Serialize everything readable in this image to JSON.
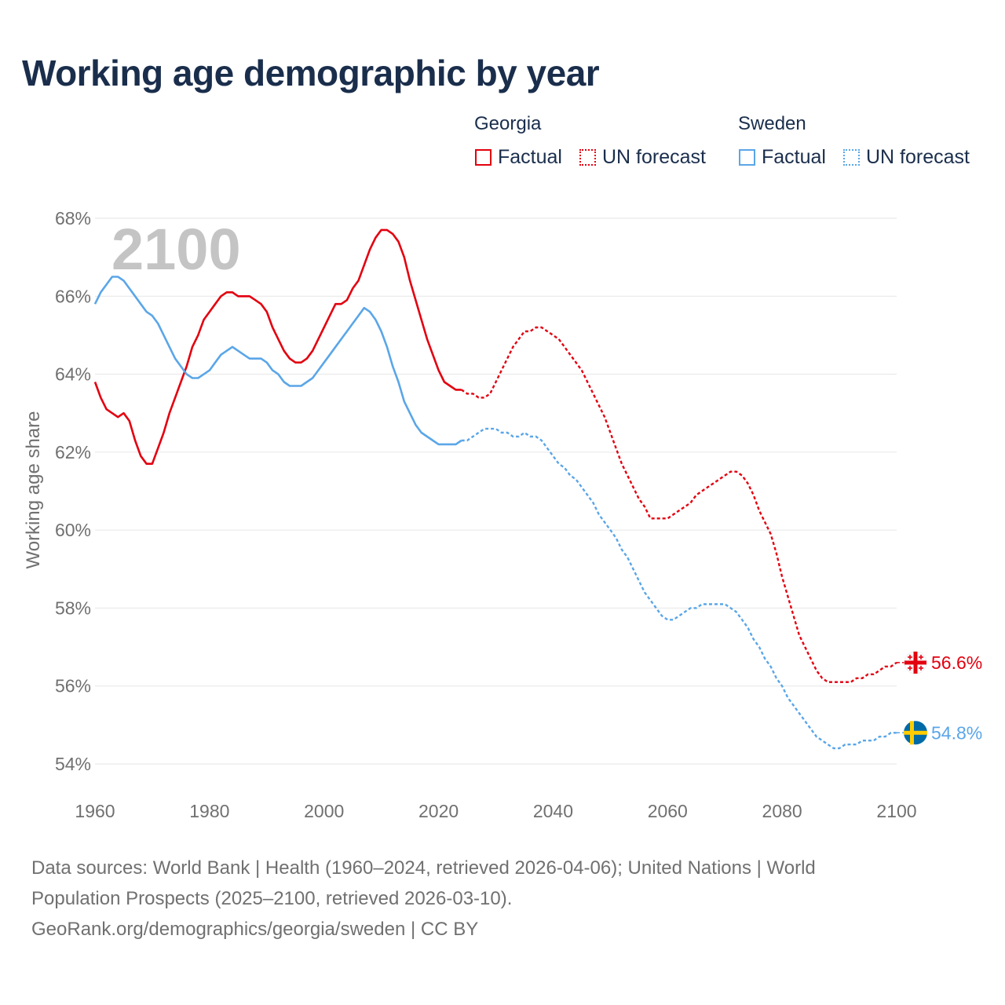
{
  "chart_data": {
    "type": "line",
    "title": "Working age demographic by year",
    "ylabel": "Working age share",
    "xlabel": "",
    "xlim": [
      1960,
      2100
    ],
    "ylim": [
      54,
      68
    ],
    "x_ticks": [
      "1960",
      "1980",
      "2000",
      "2020",
      "2040",
      "2060",
      "2080",
      "2100"
    ],
    "y_ticks": [
      "54%",
      "56%",
      "58%",
      "60%",
      "62%",
      "64%",
      "66%",
      "68%"
    ],
    "year_watermark": "2100",
    "legend": {
      "groups": [
        {
          "name": "Georgia",
          "items": [
            "Factual",
            "UN forecast"
          ]
        },
        {
          "name": "Sweden",
          "items": [
            "Factual",
            "UN forecast"
          ]
        }
      ]
    },
    "colors": {
      "Georgia": "#e3000f",
      "Sweden": "#5aa6e8"
    },
    "series": [
      {
        "name": "Georgia",
        "factual": {
          "x": [
            1960,
            1961,
            1962,
            1963,
            1964,
            1965,
            1966,
            1967,
            1968,
            1969,
            1970,
            1971,
            1972,
            1973,
            1974,
            1975,
            1976,
            1977,
            1978,
            1979,
            1980,
            1981,
            1982,
            1983,
            1984,
            1985,
            1986,
            1987,
            1988,
            1989,
            1990,
            1991,
            1992,
            1993,
            1994,
            1995,
            1996,
            1997,
            1998,
            1999,
            2000,
            2001,
            2002,
            2003,
            2004,
            2005,
            2006,
            2007,
            2008,
            2009,
            2010,
            2011,
            2012,
            2013,
            2014,
            2015,
            2016,
            2017,
            2018,
            2019,
            2020,
            2021,
            2022,
            2023,
            2024
          ],
          "y": [
            63.8,
            63.4,
            63.1,
            63.0,
            62.9,
            63.0,
            62.8,
            62.3,
            61.9,
            61.7,
            61.7,
            62.1,
            62.5,
            63.0,
            63.4,
            63.8,
            64.2,
            64.7,
            65.0,
            65.4,
            65.6,
            65.8,
            66.0,
            66.1,
            66.1,
            66.0,
            66.0,
            66.0,
            65.9,
            65.8,
            65.6,
            65.2,
            64.9,
            64.6,
            64.4,
            64.3,
            64.3,
            64.4,
            64.6,
            64.9,
            65.2,
            65.5,
            65.8,
            65.8,
            65.9,
            66.2,
            66.4,
            66.8,
            67.2,
            67.5,
            67.7,
            67.7,
            67.6,
            67.4,
            67.0,
            66.4,
            65.9,
            65.4,
            64.9,
            64.5,
            64.1,
            63.8,
            63.7,
            63.6,
            63.6
          ]
        },
        "forecast": {
          "x": [
            2024,
            2025,
            2026,
            2027,
            2028,
            2029,
            2030,
            2031,
            2032,
            2033,
            2034,
            2035,
            2036,
            2037,
            2038,
            2039,
            2040,
            2041,
            2042,
            2043,
            2044,
            2045,
            2046,
            2047,
            2048,
            2049,
            2050,
            2051,
            2052,
            2053,
            2054,
            2055,
            2056,
            2057,
            2058,
            2059,
            2060,
            2061,
            2062,
            2063,
            2064,
            2065,
            2066,
            2067,
            2068,
            2069,
            2070,
            2071,
            2072,
            2073,
            2074,
            2075,
            2076,
            2077,
            2078,
            2079,
            2080,
            2081,
            2082,
            2083,
            2084,
            2085,
            2086,
            2087,
            2088,
            2089,
            2090,
            2091,
            2092,
            2093,
            2094,
            2095,
            2096,
            2097,
            2098,
            2099,
            2100
          ],
          "y": [
            63.6,
            63.5,
            63.5,
            63.4,
            63.4,
            63.5,
            63.8,
            64.1,
            64.4,
            64.7,
            64.9,
            65.1,
            65.1,
            65.2,
            65.2,
            65.1,
            65.0,
            64.9,
            64.7,
            64.5,
            64.3,
            64.1,
            63.8,
            63.5,
            63.2,
            62.9,
            62.5,
            62.1,
            61.7,
            61.4,
            61.1,
            60.8,
            60.6,
            60.3,
            60.3,
            60.3,
            60.3,
            60.4,
            60.5,
            60.6,
            60.7,
            60.9,
            61.0,
            61.1,
            61.2,
            61.3,
            61.4,
            61.5,
            61.5,
            61.4,
            61.2,
            60.9,
            60.5,
            60.2,
            59.9,
            59.4,
            58.8,
            58.3,
            57.8,
            57.3,
            57.0,
            56.7,
            56.4,
            56.2,
            56.1,
            56.1,
            56.1,
            56.1,
            56.1,
            56.2,
            56.2,
            56.3,
            56.3,
            56.4,
            56.5,
            56.5,
            56.6
          ]
        },
        "end_label": "56.6%"
      },
      {
        "name": "Sweden",
        "factual": {
          "x": [
            1960,
            1961,
            1962,
            1963,
            1964,
            1965,
            1966,
            1967,
            1968,
            1969,
            1970,
            1971,
            1972,
            1973,
            1974,
            1975,
            1976,
            1977,
            1978,
            1979,
            1980,
            1981,
            1982,
            1983,
            1984,
            1985,
            1986,
            1987,
            1988,
            1989,
            1990,
            1991,
            1992,
            1993,
            1994,
            1995,
            1996,
            1997,
            1998,
            1999,
            2000,
            2001,
            2002,
            2003,
            2004,
            2005,
            2006,
            2007,
            2008,
            2009,
            2010,
            2011,
            2012,
            2013,
            2014,
            2015,
            2016,
            2017,
            2018,
            2019,
            2020,
            2021,
            2022,
            2023,
            2024
          ],
          "y": [
            65.8,
            66.1,
            66.3,
            66.5,
            66.5,
            66.4,
            66.2,
            66.0,
            65.8,
            65.6,
            65.5,
            65.3,
            65.0,
            64.7,
            64.4,
            64.2,
            64.0,
            63.9,
            63.9,
            64.0,
            64.1,
            64.3,
            64.5,
            64.6,
            64.7,
            64.6,
            64.5,
            64.4,
            64.4,
            64.4,
            64.3,
            64.1,
            64.0,
            63.8,
            63.7,
            63.7,
            63.7,
            63.8,
            63.9,
            64.1,
            64.3,
            64.5,
            64.7,
            64.9,
            65.1,
            65.3,
            65.5,
            65.7,
            65.6,
            65.4,
            65.1,
            64.7,
            64.2,
            63.8,
            63.3,
            63.0,
            62.7,
            62.5,
            62.4,
            62.3,
            62.2,
            62.2,
            62.2,
            62.2,
            62.3
          ]
        },
        "forecast": {
          "x": [
            2024,
            2025,
            2026,
            2027,
            2028,
            2029,
            2030,
            2031,
            2032,
            2033,
            2034,
            2035,
            2036,
            2037,
            2038,
            2039,
            2040,
            2041,
            2042,
            2043,
            2044,
            2045,
            2046,
            2047,
            2048,
            2049,
            2050,
            2051,
            2052,
            2053,
            2054,
            2055,
            2056,
            2057,
            2058,
            2059,
            2060,
            2061,
            2062,
            2063,
            2064,
            2065,
            2066,
            2067,
            2068,
            2069,
            2070,
            2071,
            2072,
            2073,
            2074,
            2075,
            2076,
            2077,
            2078,
            2079,
            2080,
            2081,
            2082,
            2083,
            2084,
            2085,
            2086,
            2087,
            2088,
            2089,
            2090,
            2091,
            2092,
            2093,
            2094,
            2095,
            2096,
            2097,
            2098,
            2099,
            2100
          ],
          "y": [
            62.3,
            62.3,
            62.4,
            62.5,
            62.6,
            62.6,
            62.6,
            62.5,
            62.5,
            62.4,
            62.4,
            62.5,
            62.4,
            62.4,
            62.3,
            62.1,
            61.9,
            61.7,
            61.6,
            61.4,
            61.3,
            61.1,
            60.9,
            60.7,
            60.4,
            60.2,
            60.0,
            59.8,
            59.5,
            59.3,
            59.0,
            58.7,
            58.4,
            58.2,
            58.0,
            57.8,
            57.7,
            57.7,
            57.8,
            57.9,
            58.0,
            58.0,
            58.1,
            58.1,
            58.1,
            58.1,
            58.1,
            58.0,
            57.9,
            57.7,
            57.5,
            57.2,
            57.0,
            56.7,
            56.5,
            56.2,
            56.0,
            55.7,
            55.5,
            55.3,
            55.1,
            54.9,
            54.7,
            54.6,
            54.5,
            54.4,
            54.4,
            54.5,
            54.5,
            54.5,
            54.6,
            54.6,
            54.6,
            54.7,
            54.7,
            54.8,
            54.8
          ]
        },
        "end_label": "54.8%"
      }
    ]
  },
  "footer": {
    "line1": "Data sources: World Bank | Health (1960–2024, retrieved 2026-04-06); United Nations | World",
    "line2": "Population Prospects (2025–2100, retrieved 2026-03-10).",
    "line3": "GeoRank.org/demographics/georgia/sweden | CC BY"
  }
}
